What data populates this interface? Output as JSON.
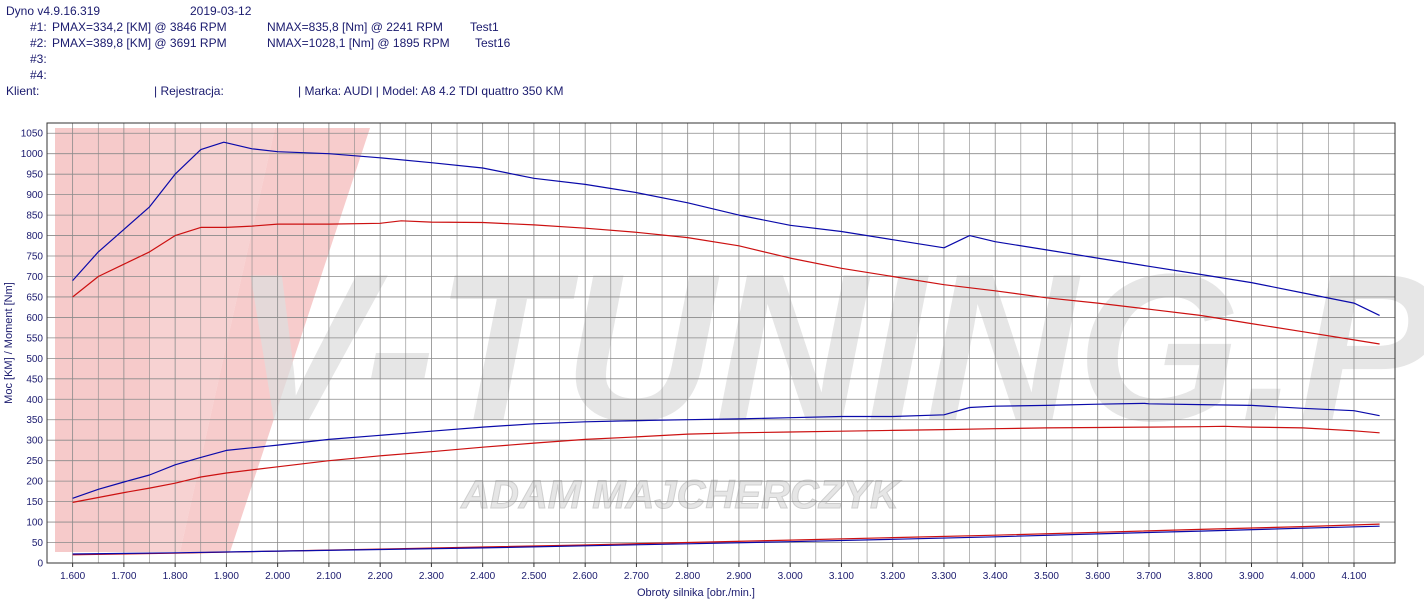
{
  "header": {
    "version": "Dyno v4.9.16.319",
    "date": "2019-03-12",
    "runs": [
      {
        "num": "#1:",
        "pmax": "PMAX=334,2 [KM] @ 3846 RPM",
        "nmax": "NMAX=835,8 [Nm] @ 2241 RPM",
        "name": "Test1"
      },
      {
        "num": "#2:",
        "pmax": "PMAX=389,8 [KM] @ 3691 RPM",
        "nmax": "NMAX=1028,1 [Nm] @ 1895 RPM",
        "name": "Test16"
      },
      {
        "num": "#3:",
        "pmax": "",
        "nmax": "",
        "name": ""
      },
      {
        "num": "#4:",
        "pmax": "",
        "nmax": "",
        "name": ""
      }
    ],
    "client_label": "Klient:",
    "registration_label": "| Rejestracja:",
    "vehicle": "| Marka: AUDI | Model: A8 4.2 TDI quattro 350 KM"
  },
  "watermark": {
    "logo_text": "V-TUNING.PL",
    "sub_text": "ADAM MAJCHERCZYK"
  },
  "colors": {
    "run1": "#cc1111",
    "run2": "#0a0aaa",
    "grid": "#8a8a8a",
    "text": "#1a1a6e"
  },
  "chart_data": {
    "type": "line",
    "xlabel": "Obroty silnika [obr./min.]",
    "ylabel": "Moc [KM] / Moment [Nm]",
    "xlim": [
      1550,
      4180
    ],
    "ylim": [
      0,
      1075
    ],
    "x_ticks": [
      "1.600",
      "1.700",
      "1.800",
      "1.900",
      "2.000",
      "2.100",
      "2.200",
      "2.300",
      "2.400",
      "2.500",
      "2.600",
      "2.700",
      "2.800",
      "2.900",
      "3.000",
      "3.100",
      "3.200",
      "3.300",
      "3.400",
      "3.500",
      "3.600",
      "3.700",
      "3.800",
      "3.900",
      "4.000",
      "4.100"
    ],
    "y_ticks": [
      0,
      50,
      100,
      150,
      200,
      250,
      300,
      350,
      400,
      450,
      500,
      550,
      600,
      650,
      700,
      750,
      800,
      850,
      900,
      950,
      1000,
      1050
    ],
    "grid": true,
    "series": [
      {
        "name": "Test1",
        "run": 1,
        "kind": "torque",
        "color": "#cc1111",
        "x": [
          1600,
          1650,
          1700,
          1750,
          1800,
          1850,
          1900,
          1950,
          2000,
          2100,
          2200,
          2241,
          2300,
          2400,
          2500,
          2600,
          2700,
          2800,
          2900,
          3000,
          3100,
          3200,
          3300,
          3400,
          3500,
          3600,
          3700,
          3800,
          3900,
          4000,
          4100,
          4150
        ],
        "y": [
          650,
          700,
          730,
          760,
          800,
          820,
          820,
          823,
          828,
          828,
          830,
          836,
          833,
          832,
          826,
          818,
          808,
          795,
          775,
          745,
          720,
          700,
          680,
          665,
          648,
          635,
          620,
          605,
          585,
          565,
          545,
          535
        ]
      },
      {
        "name": "Test16",
        "run": 2,
        "kind": "torque",
        "color": "#0a0aaa",
        "x": [
          1600,
          1650,
          1700,
          1750,
          1800,
          1850,
          1895,
          1950,
          2000,
          2100,
          2200,
          2300,
          2400,
          2500,
          2600,
          2700,
          2800,
          2900,
          3000,
          3100,
          3200,
          3300,
          3350,
          3400,
          3500,
          3600,
          3700,
          3800,
          3900,
          4000,
          4100,
          4150
        ],
        "y": [
          690,
          760,
          815,
          870,
          950,
          1010,
          1028,
          1012,
          1005,
          1000,
          990,
          978,
          965,
          940,
          925,
          905,
          880,
          850,
          825,
          810,
          790,
          770,
          800,
          785,
          765,
          745,
          725,
          705,
          685,
          660,
          635,
          605
        ]
      },
      {
        "name": "Test1",
        "run": 1,
        "kind": "power",
        "color": "#cc1111",
        "x": [
          1600,
          1650,
          1700,
          1750,
          1800,
          1850,
          1900,
          2000,
          2100,
          2200,
          2300,
          2400,
          2500,
          2600,
          2700,
          2800,
          2900,
          3000,
          3100,
          3200,
          3300,
          3400,
          3500,
          3600,
          3700,
          3800,
          3846,
          3900,
          4000,
          4100,
          4150
        ],
        "y": [
          148,
          160,
          172,
          183,
          195,
          210,
          220,
          235,
          250,
          262,
          272,
          283,
          293,
          302,
          308,
          315,
          318,
          320,
          322,
          324,
          326,
          328,
          330,
          331,
          332,
          333,
          334,
          332,
          330,
          323,
          318
        ]
      },
      {
        "name": "Test16",
        "run": 2,
        "kind": "power",
        "color": "#0a0aaa",
        "x": [
          1600,
          1650,
          1700,
          1750,
          1800,
          1850,
          1900,
          2000,
          2100,
          2200,
          2300,
          2400,
          2500,
          2600,
          2700,
          2800,
          2900,
          3000,
          3100,
          3200,
          3300,
          3350,
          3400,
          3500,
          3600,
          3691,
          3700,
          3800,
          3900,
          4000,
          4100,
          4150
        ],
        "y": [
          158,
          180,
          198,
          215,
          240,
          258,
          275,
          288,
          302,
          312,
          322,
          332,
          340,
          345,
          348,
          350,
          352,
          355,
          358,
          358,
          362,
          380,
          383,
          385,
          388,
          390,
          389,
          387,
          385,
          378,
          372,
          360
        ]
      },
      {
        "name": "Test1",
        "run": 1,
        "kind": "loss",
        "color": "#cc1111",
        "x": [
          1600,
          1800,
          2000,
          2200,
          2400,
          2600,
          2800,
          3000,
          3200,
          3400,
          3600,
          3800,
          4000,
          4150
        ],
        "y": [
          20,
          24,
          29,
          34,
          39,
          44,
          50,
          56,
          62,
          68,
          75,
          82,
          89,
          95
        ]
      },
      {
        "name": "Test16",
        "run": 2,
        "kind": "loss",
        "color": "#0a0aaa",
        "x": [
          1600,
          1800,
          2000,
          2200,
          2400,
          2600,
          2800,
          3000,
          3200,
          3400,
          3600,
          3800,
          4000,
          4150
        ],
        "y": [
          22,
          25,
          29,
          33,
          37,
          42,
          47,
          52,
          58,
          64,
          71,
          78,
          85,
          90
        ]
      }
    ]
  }
}
